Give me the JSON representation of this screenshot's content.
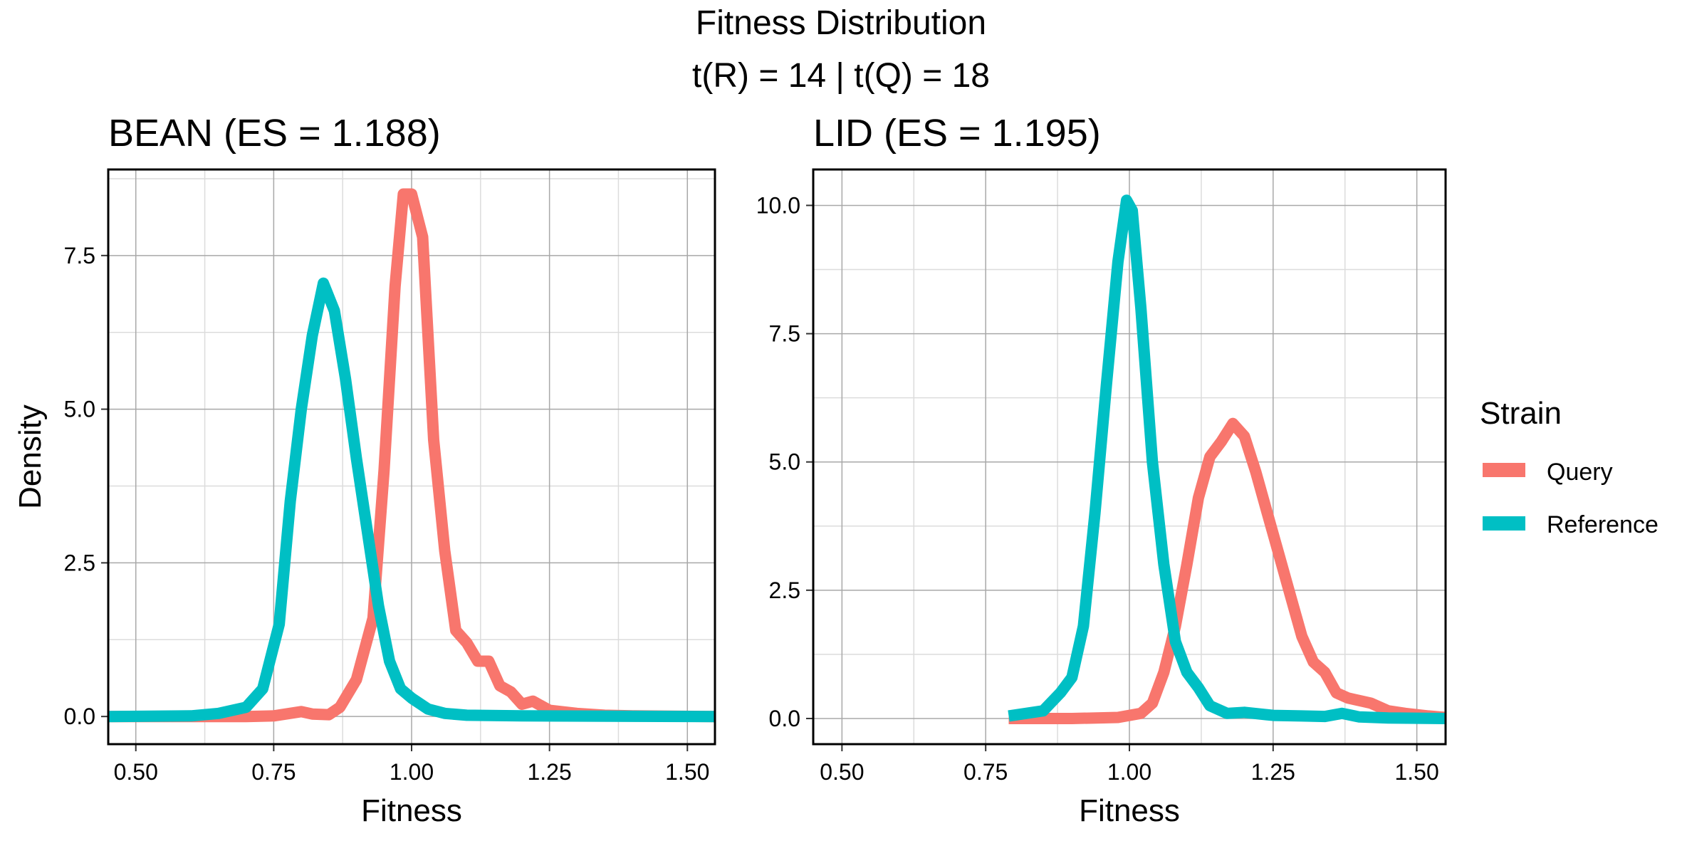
{
  "figure": {
    "title": "Fitness Distribution",
    "subtitle": "t(R) = 14 | t(Q) = 18"
  },
  "legend": {
    "title": "Strain",
    "items": [
      {
        "label": "Query",
        "color": "#F8766D"
      },
      {
        "label": "Reference",
        "color": "#00BFC4"
      }
    ]
  },
  "chart_data": [
    {
      "type": "line",
      "title": "BEAN (ES = 1.188)",
      "xlabel": "Fitness",
      "ylabel": "Density",
      "xlim": [
        0.45,
        1.55
      ],
      "ylim": [
        -0.45,
        8.9
      ],
      "xticks": [
        0.5,
        0.75,
        1.0,
        1.25,
        1.5
      ],
      "xtick_labels": [
        "0.50",
        "0.75",
        "1.00",
        "1.25",
        "1.50"
      ],
      "yticks": [
        0,
        2.5,
        5,
        7.5
      ],
      "ytick_labels": [
        "0.0",
        "2.5",
        "5.0",
        "7.5"
      ],
      "grid": true,
      "series": [
        {
          "name": "Query",
          "color": "#F8766D",
          "points": [
            [
              0.45,
              0
            ],
            [
              0.7,
              0
            ],
            [
              0.75,
              0.01
            ],
            [
              0.8,
              0.08
            ],
            [
              0.82,
              0.04
            ],
            [
              0.85,
              0.03
            ],
            [
              0.87,
              0.15
            ],
            [
              0.9,
              0.6
            ],
            [
              0.93,
              1.6
            ],
            [
              0.95,
              4.0
            ],
            [
              0.97,
              7.0
            ],
            [
              0.985,
              8.5
            ],
            [
              1.0,
              8.5
            ],
            [
              1.02,
              7.8
            ],
            [
              1.04,
              4.5
            ],
            [
              1.06,
              2.7
            ],
            [
              1.08,
              1.4
            ],
            [
              1.1,
              1.2
            ],
            [
              1.12,
              0.9
            ],
            [
              1.14,
              0.9
            ],
            [
              1.16,
              0.5
            ],
            [
              1.18,
              0.4
            ],
            [
              1.2,
              0.2
            ],
            [
              1.22,
              0.25
            ],
            [
              1.25,
              0.1
            ],
            [
              1.3,
              0.05
            ],
            [
              1.35,
              0.02
            ],
            [
              1.4,
              0.01
            ],
            [
              1.55,
              0
            ]
          ]
        },
        {
          "name": "Reference",
          "color": "#00BFC4",
          "points": [
            [
              0.45,
              0
            ],
            [
              0.6,
              0.01
            ],
            [
              0.65,
              0.05
            ],
            [
              0.7,
              0.15
            ],
            [
              0.73,
              0.45
            ],
            [
              0.76,
              1.5
            ],
            [
              0.78,
              3.5
            ],
            [
              0.8,
              5.0
            ],
            [
              0.82,
              6.2
            ],
            [
              0.84,
              7.05
            ],
            [
              0.86,
              6.6
            ],
            [
              0.88,
              5.5
            ],
            [
              0.9,
              4.2
            ],
            [
              0.92,
              3.0
            ],
            [
              0.94,
              1.8
            ],
            [
              0.96,
              0.9
            ],
            [
              0.98,
              0.45
            ],
            [
              1.0,
              0.3
            ],
            [
              1.03,
              0.12
            ],
            [
              1.06,
              0.05
            ],
            [
              1.1,
              0.02
            ],
            [
              1.2,
              0.01
            ],
            [
              1.55,
              0
            ]
          ]
        }
      ]
    },
    {
      "type": "line",
      "title": "LID (ES = 1.195)",
      "xlabel": "Fitness",
      "ylabel": "",
      "xlim": [
        0.45,
        1.55
      ],
      "ylim": [
        -0.5,
        10.7
      ],
      "xticks": [
        0.5,
        0.75,
        1.0,
        1.25,
        1.5
      ],
      "xtick_labels": [
        "0.50",
        "0.75",
        "1.00",
        "1.25",
        "1.50"
      ],
      "yticks": [
        0,
        2.5,
        5,
        7.5,
        10
      ],
      "ytick_labels": [
        "0.0",
        "2.5",
        "5.0",
        "7.5",
        "10.0"
      ],
      "grid": true,
      "series": [
        {
          "name": "Query",
          "color": "#F8766D",
          "points": [
            [
              0.79,
              0
            ],
            [
              0.9,
              0
            ],
            [
              0.98,
              0.02
            ],
            [
              1.02,
              0.1
            ],
            [
              1.04,
              0.3
            ],
            [
              1.06,
              0.9
            ],
            [
              1.08,
              1.8
            ],
            [
              1.1,
              3.0
            ],
            [
              1.12,
              4.3
            ],
            [
              1.14,
              5.1
            ],
            [
              1.16,
              5.4
            ],
            [
              1.18,
              5.75
            ],
            [
              1.2,
              5.5
            ],
            [
              1.22,
              4.8
            ],
            [
              1.24,
              4.0
            ],
            [
              1.26,
              3.2
            ],
            [
              1.28,
              2.4
            ],
            [
              1.3,
              1.6
            ],
            [
              1.32,
              1.1
            ],
            [
              1.34,
              0.9
            ],
            [
              1.36,
              0.5
            ],
            [
              1.38,
              0.4
            ],
            [
              1.42,
              0.3
            ],
            [
              1.45,
              0.15
            ],
            [
              1.48,
              0.1
            ],
            [
              1.52,
              0.05
            ],
            [
              1.55,
              0.02
            ]
          ]
        },
        {
          "name": "Reference",
          "color": "#00BFC4",
          "points": [
            [
              0.79,
              0.05
            ],
            [
              0.82,
              0.1
            ],
            [
              0.85,
              0.15
            ],
            [
              0.88,
              0.5
            ],
            [
              0.9,
              0.8
            ],
            [
              0.92,
              1.8
            ],
            [
              0.94,
              4.0
            ],
            [
              0.96,
              6.5
            ],
            [
              0.98,
              8.9
            ],
            [
              0.995,
              10.1
            ],
            [
              1.005,
              9.9
            ],
            [
              1.02,
              8.0
            ],
            [
              1.04,
              5.0
            ],
            [
              1.06,
              3.0
            ],
            [
              1.08,
              1.5
            ],
            [
              1.1,
              0.9
            ],
            [
              1.12,
              0.6
            ],
            [
              1.14,
              0.25
            ],
            [
              1.17,
              0.1
            ],
            [
              1.2,
              0.12
            ],
            [
              1.25,
              0.06
            ],
            [
              1.3,
              0.05
            ],
            [
              1.34,
              0.04
            ],
            [
              1.37,
              0.1
            ],
            [
              1.4,
              0.03
            ],
            [
              1.45,
              0.01
            ],
            [
              1.55,
              0
            ]
          ]
        }
      ]
    }
  ]
}
